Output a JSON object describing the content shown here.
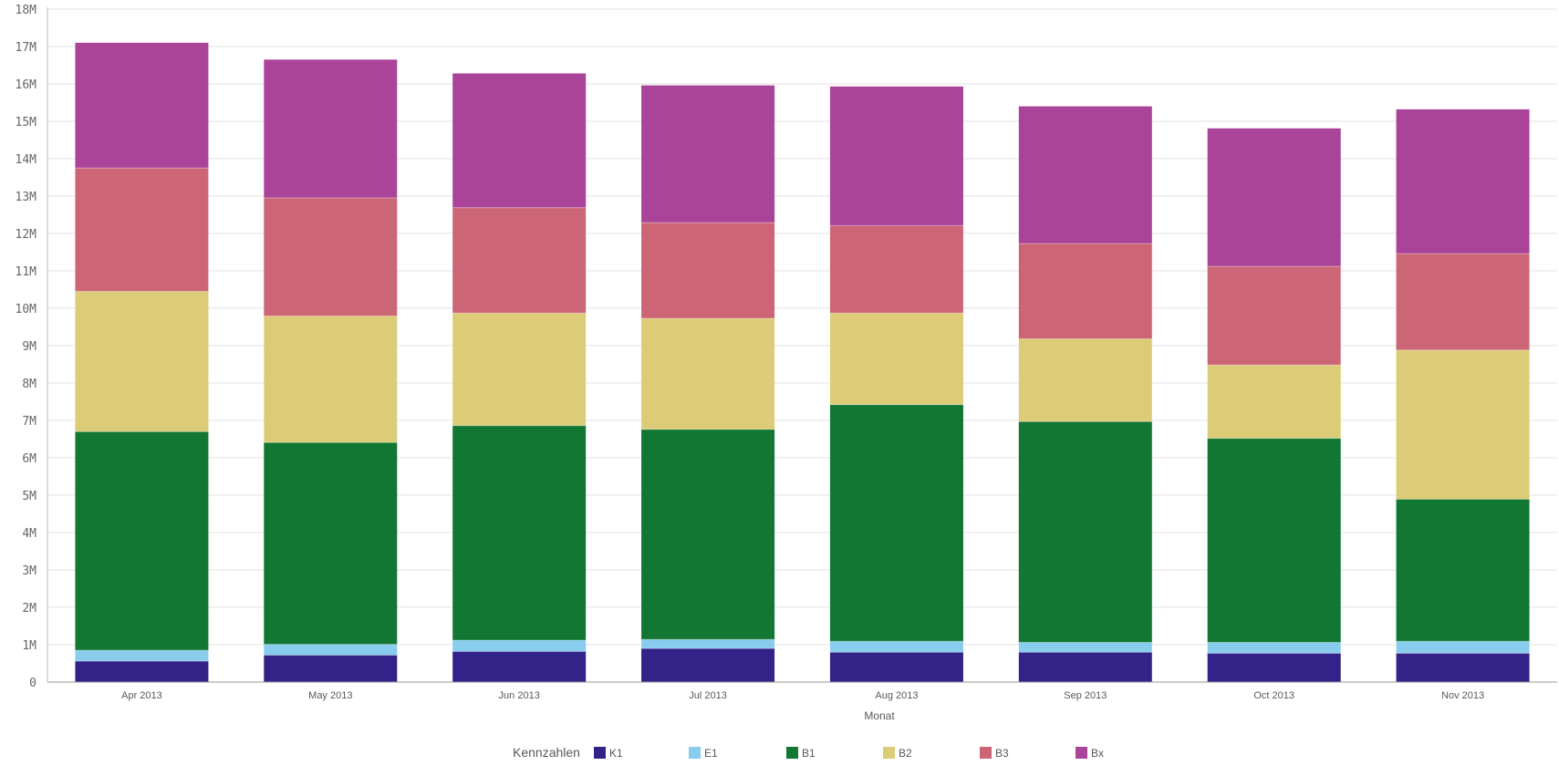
{
  "chart_data": {
    "type": "bar",
    "stacked": true,
    "title": "",
    "xlabel": "Monat",
    "ylabel": "",
    "ylim": [
      0,
      18000000
    ],
    "y_ticks": [
      "0",
      "1M",
      "2M",
      "3M",
      "4M",
      "5M",
      "6M",
      "7M",
      "8M",
      "9M",
      "10M",
      "11M",
      "12M",
      "13M",
      "14M",
      "15M",
      "16M",
      "17M",
      "18M"
    ],
    "grid": true,
    "legend_title": "Kennzahlen",
    "legend_position": "bottom",
    "categories": [
      "Apr 2013",
      "May 2013",
      "Jun 2013",
      "Jul 2013",
      "Aug 2013",
      "Sep 2013",
      "Oct 2013",
      "Nov 2013"
    ],
    "series": [
      {
        "name": "K1",
        "color": "#332288",
        "values": [
          560000,
          720000,
          820000,
          900000,
          800000,
          800000,
          770000,
          770000
        ]
      },
      {
        "name": "E1",
        "color": "#88CCEE",
        "values": [
          290000,
          290000,
          300000,
          240000,
          290000,
          260000,
          290000,
          320000
        ]
      },
      {
        "name": "B1",
        "color": "#117733",
        "values": [
          5850000,
          5400000,
          5740000,
          5620000,
          6330000,
          5910000,
          5460000,
          3800000
        ]
      },
      {
        "name": "B2",
        "color": "#DDCC77",
        "values": [
          3750000,
          3380000,
          3010000,
          2970000,
          2450000,
          2210000,
          1960000,
          3990000
        ]
      },
      {
        "name": "B3",
        "color": "#CC6677",
        "values": [
          3300000,
          3160000,
          2820000,
          2560000,
          2340000,
          2550000,
          2640000,
          2580000
        ]
      },
      {
        "name": "Bx",
        "color": "#AA4499",
        "values": [
          3350000,
          3700000,
          3590000,
          3670000,
          3720000,
          3670000,
          3690000,
          3860000
        ]
      }
    ]
  }
}
